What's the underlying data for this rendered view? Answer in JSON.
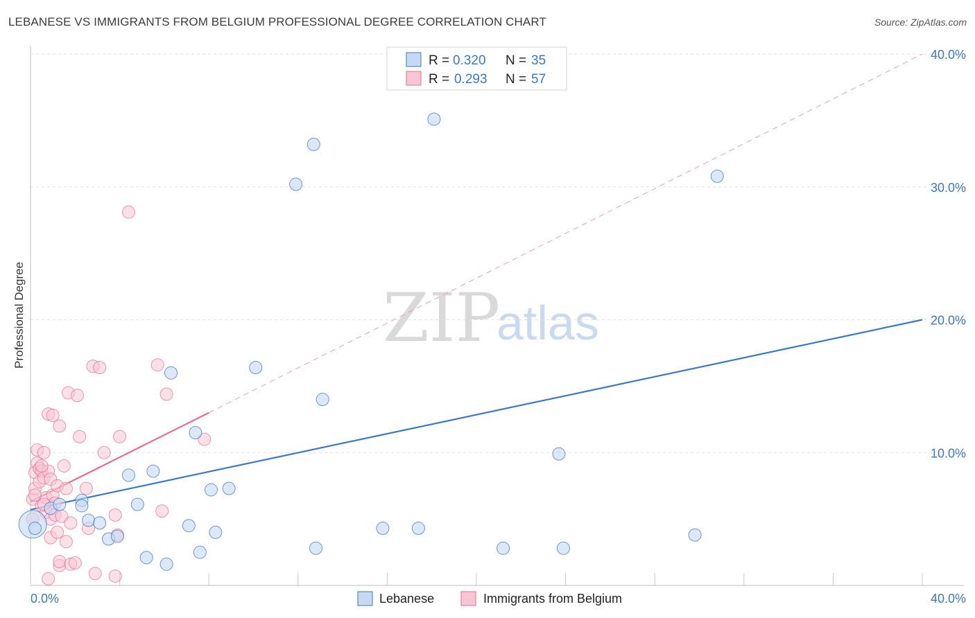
{
  "title": "LEBANESE VS IMMIGRANTS FROM BELGIUM PROFESSIONAL DEGREE CORRELATION CHART",
  "source": "Source: ZipAtlas.com",
  "watermark": {
    "zip": "ZIP",
    "atlas": "atlas"
  },
  "colors": {
    "blue": "#3a78c9",
    "blue_fill": "#c5d9f3",
    "pink": "#e86b92",
    "pink_fill": "#f7c6d5"
  },
  "chart_data": {
    "type": "scatter",
    "title": "LEBANESE VS IMMIGRANTS FROM BELGIUM PROFESSIONAL DEGREE CORRELATION CHART",
    "xlabel": "",
    "ylabel": "Professional Degree",
    "xlim": [
      0,
      40
    ],
    "ylim": [
      0,
      40
    ],
    "x_tick_labels": [
      "0.0%",
      "40.0%"
    ],
    "y_ticks": [
      10,
      20,
      30,
      40
    ],
    "y_tick_labels": [
      "10.0%",
      "20.0%",
      "30.0%",
      "40.0%"
    ],
    "legend": [
      {
        "name": "Lebanese",
        "r_label": "R = ",
        "r": "0.320",
        "n_label": "N = ",
        "n": "35"
      },
      {
        "name": "Immigrants from Belgium",
        "r_label": "R = ",
        "r": "0.293",
        "n_label": "N = ",
        "n": "57"
      }
    ],
    "series": [
      {
        "name": "Lebanese",
        "trend": {
          "x0": 0,
          "y0": 5.7,
          "x1": 40,
          "y1": 20.0,
          "style": "solid"
        },
        "points": [
          [
            0.1,
            4.6,
            1
          ],
          [
            0.9,
            5.8,
            0
          ],
          [
            1.3,
            6.1,
            0
          ],
          [
            2.3,
            6.4,
            0
          ],
          [
            2.3,
            6.0,
            0
          ],
          [
            2.6,
            4.9,
            0
          ],
          [
            3.1,
            4.7,
            0
          ],
          [
            3.5,
            3.5,
            0
          ],
          [
            3.9,
            3.7,
            0
          ],
          [
            4.4,
            8.3,
            0
          ],
          [
            4.8,
            6.1,
            0
          ],
          [
            5.2,
            2.1,
            0
          ],
          [
            5.5,
            8.6,
            0
          ],
          [
            6.1,
            1.6,
            0
          ],
          [
            6.3,
            16.0,
            0
          ],
          [
            7.1,
            4.5,
            0
          ],
          [
            7.4,
            11.5,
            0
          ],
          [
            7.6,
            2.5,
            0
          ],
          [
            8.1,
            7.2,
            0
          ],
          [
            8.3,
            4.0,
            0
          ],
          [
            8.9,
            7.3,
            0
          ],
          [
            10.1,
            16.4,
            0
          ],
          [
            11.9,
            30.2,
            0
          ],
          [
            12.7,
            33.2,
            0
          ],
          [
            12.8,
            2.8,
            0
          ],
          [
            13.1,
            14.0,
            0
          ],
          [
            15.8,
            4.3,
            0
          ],
          [
            17.4,
            4.3,
            0
          ],
          [
            18.1,
            35.1,
            0
          ],
          [
            21.2,
            2.8,
            0
          ],
          [
            23.7,
            9.9,
            0
          ],
          [
            23.9,
            2.8,
            0
          ],
          [
            29.8,
            3.8,
            0
          ],
          [
            30.8,
            30.8,
            0
          ],
          [
            0.2,
            4.3,
            0
          ]
        ]
      },
      {
        "name": "Immigrants from Belgium",
        "trend": {
          "x0": 0,
          "y0": 6.3,
          "x1": 8.0,
          "y1": 13.0,
          "style": "solid",
          "ext_x1": 40,
          "ext_y1": 40.0
        },
        "points": [
          [
            0.1,
            5.0,
            0
          ],
          [
            0.1,
            6.5,
            0
          ],
          [
            0.2,
            8.5,
            0
          ],
          [
            0.2,
            7.3,
            0
          ],
          [
            0.3,
            9.2,
            0
          ],
          [
            0.3,
            10.2,
            0
          ],
          [
            0.4,
            7.8,
            0
          ],
          [
            0.4,
            8.8,
            0
          ],
          [
            0.5,
            6.0,
            0
          ],
          [
            0.5,
            8.6,
            0
          ],
          [
            0.6,
            8.1,
            0
          ],
          [
            0.6,
            10.0,
            0
          ],
          [
            0.7,
            6.6,
            0
          ],
          [
            0.7,
            5.5,
            0
          ],
          [
            0.8,
            12.9,
            0
          ],
          [
            0.8,
            8.6,
            0
          ],
          [
            0.8,
            0.5,
            0
          ],
          [
            0.9,
            5.0,
            0
          ],
          [
            0.9,
            8.0,
            0
          ],
          [
            0.9,
            3.6,
            0
          ],
          [
            1.0,
            6.8,
            0
          ],
          [
            1.0,
            12.8,
            0
          ],
          [
            1.1,
            6.2,
            0
          ],
          [
            1.1,
            5.3,
            0
          ],
          [
            1.2,
            4.0,
            0
          ],
          [
            1.2,
            7.5,
            0
          ],
          [
            1.3,
            1.5,
            0
          ],
          [
            1.3,
            12.0,
            0
          ],
          [
            1.3,
            1.8,
            0
          ],
          [
            1.4,
            5.2,
            0
          ],
          [
            1.5,
            9.0,
            0
          ],
          [
            1.6,
            3.3,
            0
          ],
          [
            1.6,
            7.3,
            0
          ],
          [
            1.7,
            14.5,
            0
          ],
          [
            1.8,
            4.7,
            0
          ],
          [
            1.8,
            1.6,
            0
          ],
          [
            2.0,
            1.7,
            0
          ],
          [
            2.1,
            14.3,
            0
          ],
          [
            2.2,
            11.2,
            0
          ],
          [
            2.5,
            7.3,
            0
          ],
          [
            2.6,
            4.3,
            0
          ],
          [
            2.8,
            16.5,
            0
          ],
          [
            2.9,
            0.9,
            0
          ],
          [
            3.1,
            16.4,
            0
          ],
          [
            3.3,
            10.0,
            0
          ],
          [
            3.8,
            5.3,
            0
          ],
          [
            3.8,
            0.7,
            0
          ],
          [
            3.9,
            3.8,
            0
          ],
          [
            4.0,
            11.2,
            0
          ],
          [
            4.4,
            28.1,
            0
          ],
          [
            5.7,
            16.6,
            0
          ],
          [
            5.9,
            5.6,
            0
          ],
          [
            6.1,
            14.4,
            0
          ],
          [
            7.8,
            11.0,
            0
          ],
          [
            0.5,
            9.0,
            0
          ],
          [
            0.2,
            6.8,
            0
          ],
          [
            0.6,
            6.1,
            0
          ]
        ]
      }
    ]
  }
}
